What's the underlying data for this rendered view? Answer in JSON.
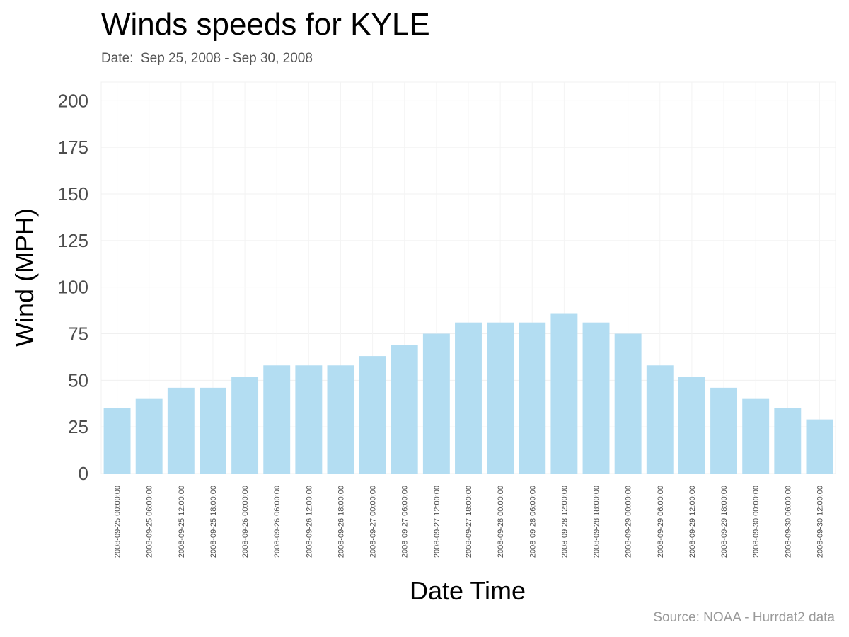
{
  "chart_data": {
    "type": "bar",
    "title": "Winds speeds for KYLE",
    "subtitle": "Date:  Sep 25, 2008 - Sep 30, 2008",
    "caption": "Source: NOAA - Hurrdat2 data",
    "xlabel": "Date Time",
    "ylabel": "Wind (MPH)",
    "ylim": [
      0,
      210
    ],
    "yticks": [
      0,
      25,
      50,
      75,
      100,
      125,
      150,
      175,
      200
    ],
    "grid": true,
    "bar_color": "#b3ddf2",
    "categories": [
      "2008-09-25 00:00:00",
      "2008-09-25 06:00:00",
      "2008-09-25 12:00:00",
      "2008-09-25 18:00:00",
      "2008-09-26 00:00:00",
      "2008-09-26 06:00:00",
      "2008-09-26 12:00:00",
      "2008-09-26 18:00:00",
      "2008-09-27 00:00:00",
      "2008-09-27 06:00:00",
      "2008-09-27 12:00:00",
      "2008-09-27 18:00:00",
      "2008-09-28 00:00:00",
      "2008-09-28 06:00:00",
      "2008-09-28 12:00:00",
      "2008-09-28 18:00:00",
      "2008-09-29 00:00:00",
      "2008-09-29 06:00:00",
      "2008-09-29 12:00:00",
      "2008-09-29 18:00:00",
      "2008-09-30 00:00:00",
      "2008-09-30 06:00:00",
      "2008-09-30 12:00:00"
    ],
    "values": [
      35,
      40,
      46,
      46,
      52,
      58,
      58,
      58,
      63,
      69,
      75,
      81,
      81,
      81,
      86,
      81,
      75,
      58,
      52,
      46,
      40,
      35,
      29
    ]
  }
}
